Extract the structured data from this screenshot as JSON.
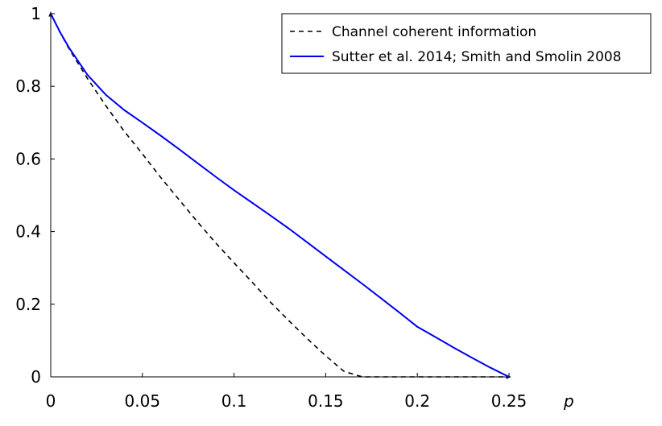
{
  "chart_data": {
    "type": "line",
    "title": "",
    "xlabel": "p",
    "ylabel": "",
    "xlim": [
      0,
      0.25
    ],
    "ylim": [
      0,
      1
    ],
    "x_ticks": [
      0,
      0.05,
      0.1,
      0.15,
      0.2,
      0.25
    ],
    "x_tick_labels": [
      "0",
      "0.05",
      "0.1",
      "0.15",
      "0.2",
      "0.25"
    ],
    "y_ticks": [
      0,
      0.2,
      0.4,
      0.6,
      0.8,
      1
    ],
    "y_tick_labels": [
      "0",
      "0.2",
      "0.4",
      "0.6",
      "0.8",
      "1"
    ],
    "grid": false,
    "legend_position": "top-right",
    "series": [
      {
        "name": "Channel coherent information",
        "style": "dashed",
        "color": "#000000",
        "points": [
          [
            0,
            1
          ],
          [
            0.005,
            0.949
          ],
          [
            0.01,
            0.903
          ],
          [
            0.02,
            0.822
          ],
          [
            0.03,
            0.747
          ],
          [
            0.04,
            0.677
          ],
          [
            0.05,
            0.614
          ],
          [
            0.06,
            0.549
          ],
          [
            0.07,
            0.488
          ],
          [
            0.08,
            0.427
          ],
          [
            0.09,
            0.369
          ],
          [
            0.1,
            0.314
          ],
          [
            0.11,
            0.26
          ],
          [
            0.12,
            0.205
          ],
          [
            0.13,
            0.154
          ],
          [
            0.14,
            0.105
          ],
          [
            0.15,
            0.058
          ],
          [
            0.16,
            0.015
          ],
          [
            0.17,
            0.0
          ],
          [
            0.175,
            0.0
          ],
          [
            0.19,
            0.0
          ],
          [
            0.2,
            0.0
          ],
          [
            0.25,
            0.0
          ]
        ]
      },
      {
        "name": "Sutter et al. 2014; Smith and Smolin 2008",
        "style": "solid",
        "color": "#0000ee",
        "points": [
          [
            0,
            1
          ],
          [
            0.005,
            0.95
          ],
          [
            0.01,
            0.906
          ],
          [
            0.02,
            0.832
          ],
          [
            0.03,
            0.777
          ],
          [
            0.04,
            0.735
          ],
          [
            0.05,
            0.7
          ],
          [
            0.06,
            0.664
          ],
          [
            0.07,
            0.627
          ],
          [
            0.08,
            0.589
          ],
          [
            0.09,
            0.551
          ],
          [
            0.1,
            0.514
          ],
          [
            0.11,
            0.479
          ],
          [
            0.12,
            0.444
          ],
          [
            0.13,
            0.408
          ],
          [
            0.14,
            0.37
          ],
          [
            0.15,
            0.332
          ],
          [
            0.16,
            0.294
          ],
          [
            0.17,
            0.256
          ],
          [
            0.18,
            0.217
          ],
          [
            0.19,
            0.178
          ],
          [
            0.2,
            0.138
          ],
          [
            0.21,
            0.109
          ],
          [
            0.22,
            0.08
          ],
          [
            0.23,
            0.052
          ],
          [
            0.24,
            0.025
          ],
          [
            0.25,
            0.0
          ]
        ]
      }
    ]
  }
}
